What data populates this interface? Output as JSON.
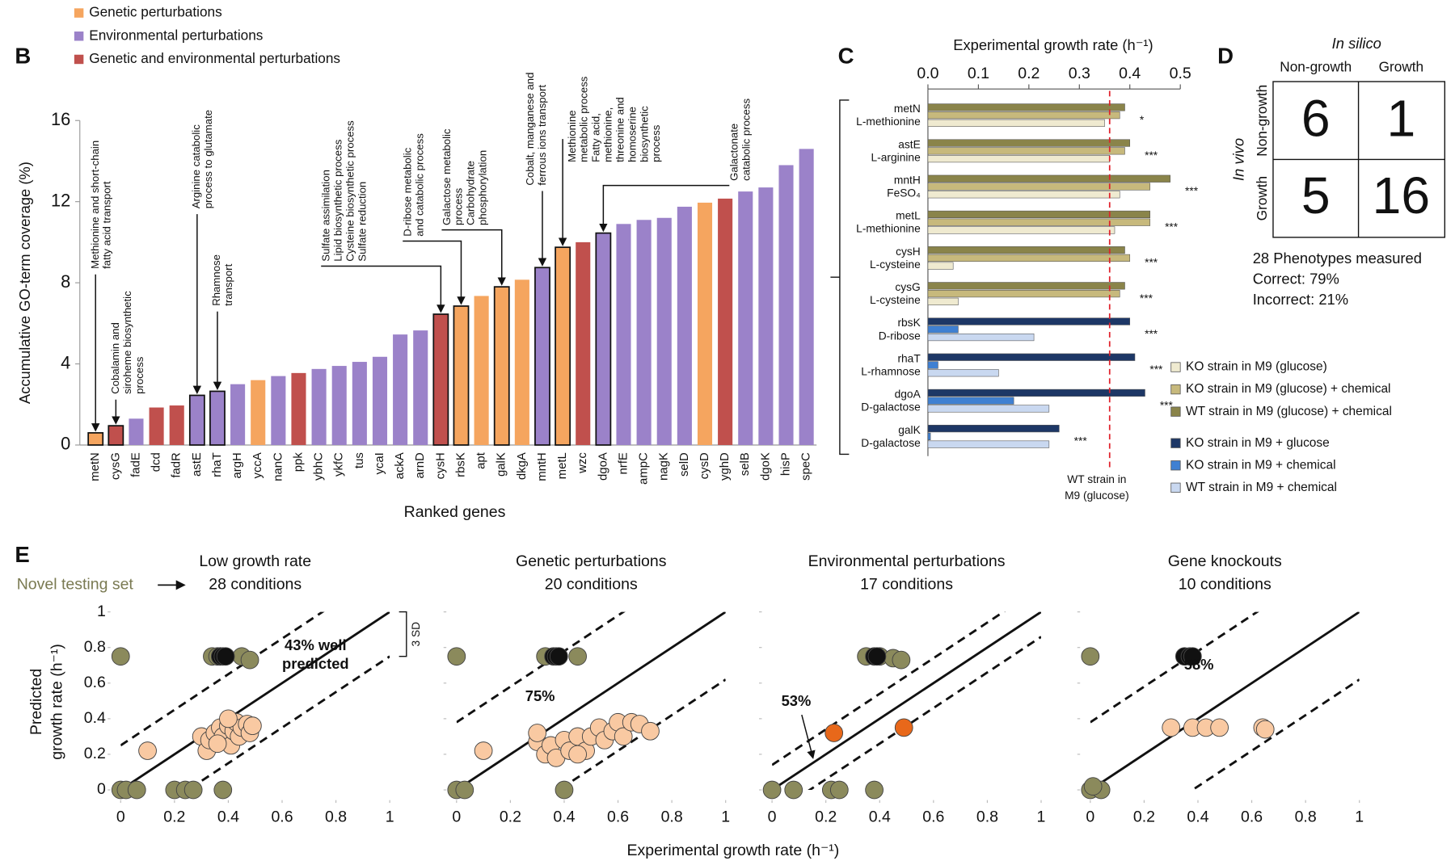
{
  "panel_labels": [
    "B",
    "C",
    "D",
    "E"
  ],
  "chart_data": [
    {
      "type": "bar",
      "y_label": "Accumulative GO-term coverage (%)",
      "x_label": "Ranked genes",
      "legend": [
        {
          "name": "Genetic perturbations",
          "color": "#f5a55f"
        },
        {
          "name": "Environmental perturbations",
          "color": "#9b82c9"
        },
        {
          "name": "Genetic and environmental perturbations",
          "color": "#c0504d"
        }
      ],
      "categories": [
        "metN",
        "cysG",
        "fadE",
        "dcd",
        "fadR",
        "astE",
        "rhaT",
        "argH",
        "yccA",
        "nanC",
        "ppk",
        "ybhC",
        "ykfC",
        "tus",
        "ycaI",
        "ackA",
        "arnD",
        "cysH",
        "rbsK",
        "apt",
        "galK",
        "dkgA",
        "mntH",
        "metL",
        "wzc",
        "dgoA",
        "nrfE",
        "ampC",
        "nagK",
        "selD",
        "cysD",
        "yghD",
        "selB",
        "dgoK",
        "hisP",
        "speC"
      ],
      "values": [
        0.6,
        0.95,
        1.3,
        1.85,
        1.95,
        2.45,
        2.65,
        3.0,
        3.2,
        3.4,
        3.55,
        3.75,
        3.9,
        4.1,
        4.35,
        5.45,
        5.65,
        6.45,
        6.85,
        7.35,
        7.8,
        8.15,
        8.75,
        9.75,
        10.0,
        10.45,
        10.9,
        11.1,
        11.2,
        11.75,
        11.95,
        12.15,
        12.5,
        12.7,
        13.8,
        14.6
      ],
      "colors": [
        "#f5a55f",
        "#c0504d",
        "#9b82c9",
        "#c0504d",
        "#c0504d",
        "#9b82c9",
        "#9b82c9",
        "#9b82c9",
        "#f5a55f",
        "#9b82c9",
        "#c0504d",
        "#9b82c9",
        "#9b82c9",
        "#9b82c9",
        "#9b82c9",
        "#9b82c9",
        "#9b82c9",
        "#c0504d",
        "#f5a55f",
        "#f5a55f",
        "#f5a55f",
        "#f5a55f",
        "#9b82c9",
        "#f5a55f",
        "#c0504d",
        "#9b82c9",
        "#9b82c9",
        "#9b82c9",
        "#9b82c9",
        "#9b82c9",
        "#f5a55f",
        "#c0504d",
        "#9b82c9",
        "#9b82c9",
        "#9b82c9",
        "#9b82c9"
      ],
      "ylim": [
        0,
        16
      ],
      "yticks": [
        0,
        4,
        8,
        12,
        16
      ],
      "annotations": [
        [
          "Methionine and short-chain",
          "fatty acid transport"
        ],
        [
          "Cobalamin and",
          "siroheme biosynthetic",
          "process"
        ],
        [
          "Arginine catabolic",
          "process to glutamate"
        ],
        [
          "Rhamnose",
          "transport"
        ],
        [
          "Sulfate assimilation",
          "Lipid biosynthetic process",
          "Cysteine biosynthetic process",
          "Sulfate reduction"
        ],
        [
          "D-ribose metabolic",
          "and catabolic process"
        ],
        [
          "Galactose metabolic",
          "process",
          "Carbohydrate",
          "phosphorylation"
        ],
        [
          "Cobalt, manganese and",
          "ferrous ions transport"
        ],
        [
          "Methionine",
          "metabolic process",
          "Fatty acid,",
          "methionine,",
          "threonine and",
          "homoserine",
          "biosynthetic",
          "process"
        ],
        [
          "Galactonate",
          "catabolic process"
        ]
      ]
    },
    {
      "type": "hbar",
      "title": "Experimental growth rate (h⁻¹)",
      "categories": [
        [
          "metN",
          "L-methionine"
        ],
        [
          "astE",
          "L-arginine"
        ],
        [
          "mntH",
          "FeSO₄"
        ],
        [
          "metL",
          "L-methionine"
        ],
        [
          "cysH",
          "L-cysteine"
        ],
        [
          "cysG",
          "L-cysteine"
        ],
        [
          "rbsK",
          "D-ribose"
        ],
        [
          "rhaT",
          "L-rhamnose"
        ],
        [
          "dgoA",
          "D-galactose"
        ],
        [
          "galK",
          "D-galactose"
        ]
      ],
      "xlim": [
        0,
        0.5
      ],
      "xticks": [
        {
          "value": 0,
          "label": "0.0"
        },
        0.1,
        0.2,
        0.3,
        0.4,
        0.5
      ],
      "series": [
        {
          "name": "KO strain in M9 (glucose)",
          "color": "#efead0",
          "values": [
            0.35,
            0.36,
            0.38,
            0.37,
            0.05,
            0.06,
            null,
            null,
            null,
            null
          ]
        },
        {
          "name": "KO strain in M9 (glucose) + chemical",
          "color": "#c7b97c",
          "values": [
            0.38,
            0.39,
            0.44,
            0.44,
            0.4,
            0.38,
            null,
            null,
            null,
            null
          ]
        },
        {
          "name": "WT strain in M9 (glucose) + chemical",
          "color": "#8a844a",
          "values": [
            0.39,
            0.4,
            0.48,
            0.44,
            0.39,
            0.39,
            null,
            null,
            null,
            null
          ]
        },
        {
          "name": "KO strain in M9 + glucose",
          "color": "#1d3766",
          "values": [
            null,
            null,
            null,
            null,
            null,
            null,
            0.4,
            0.41,
            0.43,
            0.26
          ]
        },
        {
          "name": "KO strain in M9 + chemical",
          "color": "#3f80d2",
          "values": [
            null,
            null,
            null,
            null,
            null,
            null,
            0.06,
            0.02,
            0.17,
            0.005
          ]
        },
        {
          "name": "WT strain in M9 + chemical",
          "color": "#c9d8f0",
          "values": [
            null,
            null,
            null,
            null,
            null,
            null,
            0.21,
            0.14,
            0.24,
            0.24
          ]
        }
      ],
      "significance": [
        "*",
        "***",
        "***",
        "***",
        "***",
        "***",
        "***",
        "***",
        "***",
        "***"
      ],
      "reference": {
        "value": 0.36,
        "color": "#e0202a",
        "label": [
          "WT strain in",
          "M9 (glucose)"
        ]
      }
    },
    {
      "type": "scatter",
      "title": "Low growth rate",
      "subtitle": "28 conditions",
      "xlim": [
        0,
        1
      ],
      "ylim": [
        0,
        1
      ],
      "xticks": [
        0,
        0.2,
        0.4,
        0.6,
        0.8,
        1
      ],
      "yticks": [
        0,
        0.2,
        0.4,
        0.6,
        0.8,
        1
      ],
      "band": 0.25,
      "band_label": "3 SD",
      "annotation": [
        "43% well",
        "predicted"
      ],
      "series": [
        {
          "color": "#8b8a5c",
          "x": [
            0,
            0,
            0.02,
            0.06,
            0.2,
            0.24,
            0.27,
            0.38,
            0.34,
            0.36,
            0.37,
            0.45,
            0.48
          ],
          "values": [
            0.75,
            0,
            0,
            0,
            0,
            0,
            0,
            0,
            0.75,
            0.75,
            0.75,
            0.75,
            0.73
          ]
        },
        {
          "color": "#111111",
          "x": [
            0.37,
            0.38,
            0.39
          ],
          "values": [
            0.75,
            0.75,
            0.75
          ]
        },
        {
          "color": "#f9c9a2",
          "x": [
            0.1,
            0.3,
            0.32,
            0.33,
            0.35,
            0.37,
            0.38,
            0.4,
            0.41,
            0.42,
            0.43,
            0.44,
            0.45,
            0.47,
            0.48,
            0.49,
            0.4,
            0.36
          ],
          "values": [
            0.22,
            0.3,
            0.22,
            0.28,
            0.32,
            0.35,
            0.3,
            0.36,
            0.25,
            0.33,
            0.38,
            0.3,
            0.35,
            0.37,
            0.32,
            0.36,
            0.4,
            0.26
          ]
        }
      ]
    },
    {
      "type": "scatter",
      "title": "Genetic perturbations",
      "subtitle": "20 conditions",
      "xlim": [
        0,
        1
      ],
      "ylim": [
        0,
        1
      ],
      "xticks": [
        0,
        0.2,
        0.4,
        0.6,
        0.8,
        1
      ],
      "yticks": [
        0,
        0.2,
        0.4,
        0.6,
        0.8,
        1
      ],
      "band": 0.38,
      "annotation": [
        "75%"
      ],
      "series": [
        {
          "color": "#8b8a5c",
          "x": [
            0,
            0,
            0.03,
            0.4,
            0.33,
            0.45
          ],
          "values": [
            0.75,
            0,
            0,
            0,
            0.75,
            0.75
          ]
        },
        {
          "color": "#111111",
          "x": [
            0.36,
            0.37,
            0.38
          ],
          "values": [
            0.75,
            0.75,
            0.75
          ]
        },
        {
          "color": "#f9c9a2",
          "x": [
            0.1,
            0.3,
            0.3,
            0.33,
            0.35,
            0.37,
            0.4,
            0.42,
            0.45,
            0.48,
            0.5,
            0.53,
            0.55,
            0.58,
            0.6,
            0.62,
            0.65,
            0.68,
            0.72,
            0.45
          ],
          "values": [
            0.22,
            0.27,
            0.32,
            0.2,
            0.25,
            0.18,
            0.28,
            0.22,
            0.3,
            0.22,
            0.3,
            0.35,
            0.28,
            0.33,
            0.38,
            0.3,
            0.38,
            0.37,
            0.33,
            0.2
          ]
        }
      ]
    },
    {
      "type": "scatter",
      "title": "Environmental perturbations",
      "subtitle": "17 conditions",
      "xlim": [
        0,
        1
      ],
      "ylim": [
        0,
        1
      ],
      "xticks": [
        0,
        0.2,
        0.4,
        0.6,
        0.8,
        1
      ],
      "yticks": [
        0,
        0.2,
        0.4,
        0.6,
        0.8,
        1
      ],
      "band": 0.14,
      "annotation": [
        "53%"
      ],
      "series": [
        {
          "color": "#8b8a5c",
          "x": [
            0,
            0.08,
            0.22,
            0.25,
            0.38,
            0.35,
            0.4,
            0.45,
            0.48
          ],
          "values": [
            0,
            0,
            0,
            0,
            0,
            0.75,
            0.75,
            0.74,
            0.73
          ]
        },
        {
          "color": "#111111",
          "x": [
            0.38,
            0.39
          ],
          "values": [
            0.75,
            0.75
          ]
        },
        {
          "color": "#e8681a",
          "x": [
            0.23,
            0.49
          ],
          "values": [
            0.32,
            0.35
          ]
        }
      ]
    },
    {
      "type": "scatter",
      "title": "Gene knockouts",
      "subtitle": "10 conditions",
      "xlim": [
        0,
        1
      ],
      "ylim": [
        0,
        1
      ],
      "xticks": [
        0,
        0.2,
        0.4,
        0.6,
        0.8,
        1
      ],
      "yticks": [
        0,
        0.2,
        0.4,
        0.6,
        0.8,
        1
      ],
      "band": 0.38,
      "annotation": [
        "58%"
      ],
      "series": [
        {
          "color": "#8b8a5c",
          "x": [
            0,
            0,
            0.04,
            0.01
          ],
          "values": [
            0.75,
            0,
            0,
            0.02
          ]
        },
        {
          "color": "#111111",
          "x": [
            0.35,
            0.37,
            0.38
          ],
          "values": [
            0.75,
            0.75,
            0.75
          ]
        },
        {
          "color": "#f9c9a2",
          "x": [
            0.3,
            0.38,
            0.43,
            0.48,
            0.64,
            0.65
          ],
          "values": [
            0.35,
            0.35,
            0.35,
            0.35,
            0.35,
            0.34
          ]
        }
      ]
    }
  ],
  "panel_d": {
    "title": "In silico",
    "columns": [
      "Non-growth",
      "Growth"
    ],
    "row_title": "In vivo",
    "rows": [
      "Non-growth",
      "Growth"
    ],
    "cells": [
      [
        6,
        1
      ],
      [
        5,
        16
      ]
    ],
    "notes": [
      "28 Phenotypes measured",
      "Correct: 79%",
      "Incorrect: 21%"
    ]
  },
  "panel_e": {
    "lead": "Novel testing set",
    "y_label": [
      "Predicted",
      "growth rate (h⁻¹)"
    ],
    "x_label": "Experimental growth rate (h⁻¹)"
  }
}
